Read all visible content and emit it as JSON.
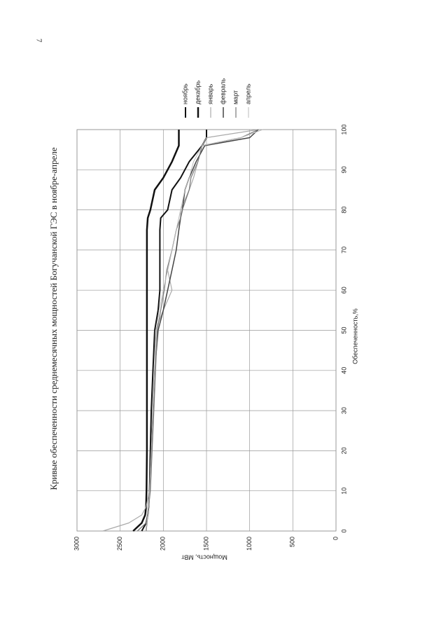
{
  "page_number": "7",
  "chart_data": {
    "type": "line",
    "title": "Кривые обеспеченности среднемесячных мощностей Богучанской ГЭС в ноябре-апреле",
    "x_label": "Обеспеченность,%",
    "y_label": "Мощность, МВт",
    "x": [
      0,
      2,
      4,
      6,
      10,
      20,
      30,
      40,
      50,
      55,
      60,
      65,
      70,
      75,
      78,
      80,
      85,
      88,
      92,
      96,
      98,
      100
    ],
    "xlim": [
      0,
      100
    ],
    "xticks": [
      0,
      10,
      20,
      30,
      40,
      50,
      60,
      70,
      80,
      90,
      100
    ],
    "ylim": [
      0,
      3000
    ],
    "yticks": [
      0,
      500,
      1000,
      1500,
      2000,
      2500,
      3000
    ],
    "grid": true,
    "legend": "right",
    "series": [
      {
        "name": "ноябрь",
        "color": "#111111",
        "line_width": 2,
        "values": [
          2250,
          2200,
          2180,
          2170,
          2160,
          2150,
          2140,
          2120,
          2100,
          2060,
          2040,
          2040,
          2040,
          2040,
          2030,
          1950,
          1900,
          1800,
          1700,
          1550,
          1500,
          1500
        ]
      },
      {
        "name": "декабрь",
        "color": "#111111",
        "line_width": 2.5,
        "values": [
          2350,
          2250,
          2210,
          2200,
          2195,
          2190,
          2190,
          2190,
          2190,
          2190,
          2190,
          2190,
          2190,
          2190,
          2180,
          2150,
          2100,
          2000,
          1900,
          1820,
          1820,
          1820
        ]
      },
      {
        "name": "январь",
        "color": "#aaaaaa",
        "line_width": 1.2,
        "values": [
          2700,
          2400,
          2250,
          2200,
          2160,
          2140,
          2120,
          2100,
          2090,
          2000,
          1900,
          1950,
          1900,
          1850,
          1800,
          1800,
          1700,
          1650,
          1600,
          1550,
          1500,
          900
        ]
      },
      {
        "name": "февраль",
        "color": "#444444",
        "line_width": 1.5,
        "values": [
          2200,
          2190,
          2180,
          2170,
          2160,
          2140,
          2120,
          2100,
          2060,
          2000,
          1950,
          1900,
          1850,
          1820,
          1800,
          1780,
          1750,
          1700,
          1620,
          1520,
          1000,
          900
        ]
      },
      {
        "name": "март",
        "color": "#777777",
        "line_width": 1.2,
        "values": [
          2300,
          2200,
          2180,
          2170,
          2150,
          2130,
          2110,
          2090,
          2070,
          2030,
          1990,
          1960,
          1900,
          1850,
          1800,
          1780,
          1700,
          1680,
          1600,
          1550,
          1100,
          900
        ]
      },
      {
        "name": "апрель",
        "color": "#bbbbbb",
        "line_width": 1,
        "values": [
          2200,
          2190,
          2180,
          2170,
          2160,
          2140,
          2120,
          2100,
          2080,
          2050,
          2000,
          1950,
          1900,
          1850,
          1820,
          1800,
          1750,
          1700,
          1650,
          1550,
          1100,
          850
        ]
      }
    ]
  }
}
